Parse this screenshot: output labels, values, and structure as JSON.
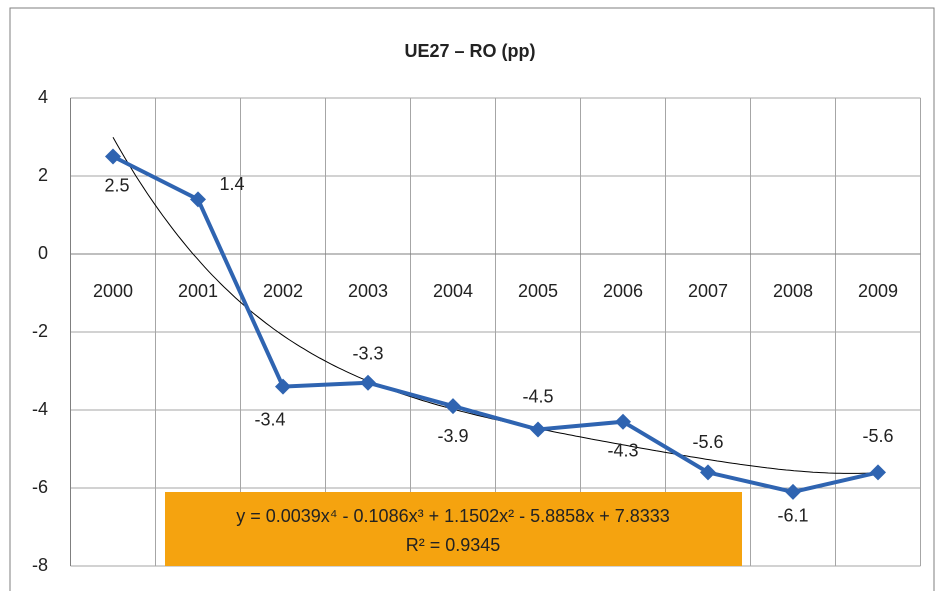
{
  "chart_data": {
    "type": "line",
    "title": "UE27 – RO (pp)",
    "categories": [
      "2000",
      "2001",
      "2002",
      "2003",
      "2004",
      "2005",
      "2006",
      "2007",
      "2008",
      "2009"
    ],
    "series": [
      {
        "name": "UE27 – RO",
        "color": "#2f64b1",
        "values": [
          2.5,
          1.4,
          -3.4,
          -3.3,
          -3.9,
          -4.5,
          -4.3,
          -5.6,
          -6.1,
          -5.6
        ]
      }
    ],
    "ylim": [
      -8,
      4
    ],
    "yticks": [
      -8,
      -6,
      -4,
      -2,
      0,
      2,
      4
    ],
    "grid": true,
    "trendline": {
      "type": "polynomial",
      "coefficients": [
        0.0039,
        -0.1086,
        1.1502,
        -5.8858,
        7.8333
      ],
      "color": "#000000",
      "equation": "y = 0.0039x⁴ - 0.1086x³ + 1.1502x² - 5.8858x + 7.8333",
      "r2": "R² = 0.9345",
      "box_color": "#f5a30f"
    }
  }
}
